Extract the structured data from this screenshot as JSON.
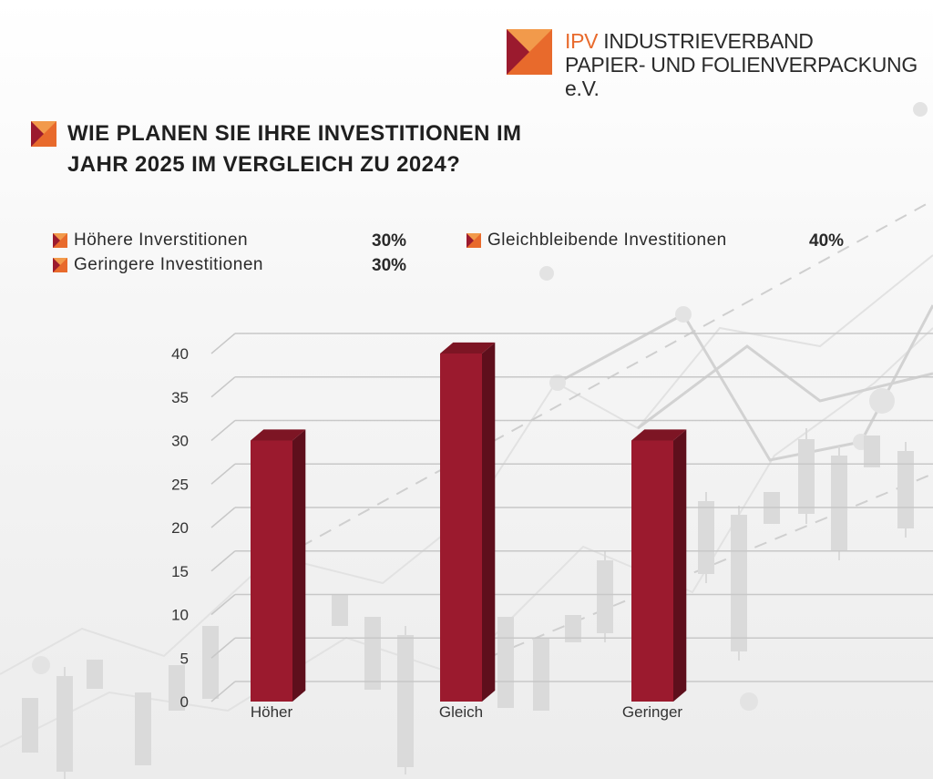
{
  "header": {
    "logo_abbr": "IPV",
    "logo_line1": "INDUSTRIEVERBAND",
    "logo_line2": "PAPIER- UND FOLIENVERPACKUNG e.V."
  },
  "title": {
    "line1": "WIE PLANEN SIE IHRE INVESTITIONEN IM",
    "line2": "JAHR 2025 IM VERGLEICH ZU 2024?"
  },
  "legend": [
    {
      "label": "Höhere Inverstitionen",
      "value": "30%"
    },
    {
      "label": "Gleichbleibende Investitionen",
      "value": "40%"
    },
    {
      "label": "Geringere Investitionen",
      "value": "30%"
    }
  ],
  "colors": {
    "bar": "#9b1a2e",
    "logo_orange": "#e86a2c",
    "logo_red": "#9b1a2e"
  },
  "chart_data": {
    "type": "bar",
    "categories": [
      "Höher",
      "Gleich",
      "Geringer"
    ],
    "values": [
      30,
      40,
      30
    ],
    "title": "WIE PLANEN SIE IHRE INVESTITIONEN IM JAHR 2025 IM VERGLEICH ZU 2024?",
    "xlabel": "",
    "ylabel": "",
    "ylim": [
      0,
      40
    ],
    "yticks": [
      0,
      5,
      10,
      15,
      20,
      25,
      30,
      35,
      40
    ],
    "grid": true,
    "legend_placement": "top"
  }
}
